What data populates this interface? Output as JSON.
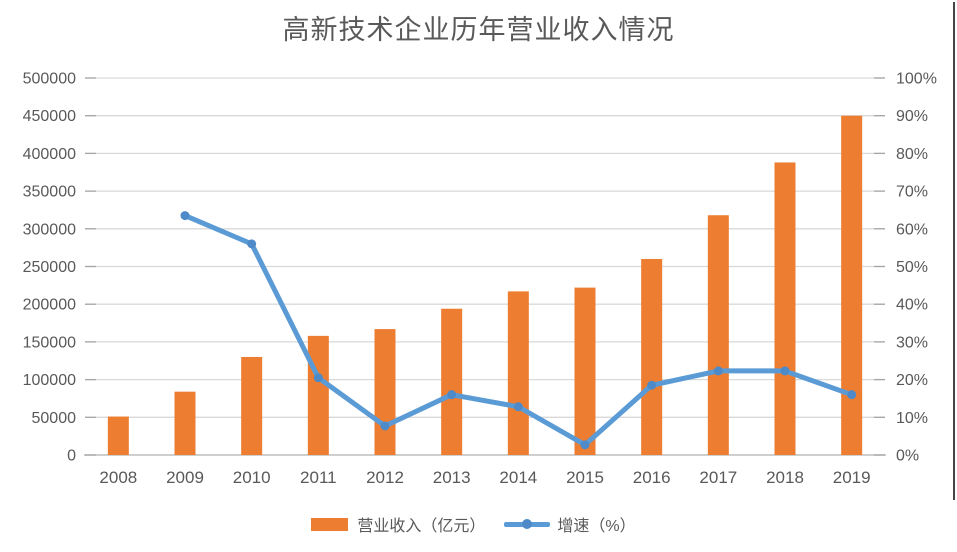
{
  "chart_data": {
    "type": "combo-bar-line",
    "title": "高新技术企业历年营业收入情况",
    "categories": [
      "2008",
      "2009",
      "2010",
      "2011",
      "2012",
      "2013",
      "2014",
      "2015",
      "2016",
      "2017",
      "2018",
      "2019"
    ],
    "series": [
      {
        "name": "营业收入（亿元）",
        "type": "bar",
        "axis": "left",
        "values": [
          51000,
          84000,
          130000,
          158000,
          167000,
          194000,
          217000,
          222000,
          260000,
          318000,
          388000,
          450000
        ]
      },
      {
        "name": "增速（%）",
        "type": "line",
        "axis": "right",
        "values": [
          null,
          63.5,
          56,
          20.5,
          7.7,
          16,
          12.8,
          2.7,
          18.5,
          22.3,
          22.3,
          16
        ]
      }
    ],
    "left_axis": {
      "min": 0,
      "max": 500000,
      "step": 50000,
      "tick_labels": [
        "0",
        "50000",
        "100000",
        "150000",
        "200000",
        "250000",
        "300000",
        "350000",
        "400000",
        "450000",
        "500000"
      ]
    },
    "right_axis": {
      "min": 0,
      "max": 100,
      "step": 10,
      "tick_labels": [
        "0%",
        "10%",
        "20%",
        "30%",
        "40%",
        "50%",
        "60%",
        "70%",
        "80%",
        "90%",
        "100%"
      ]
    },
    "grid": true,
    "legend_position": "bottom"
  },
  "legend": {
    "revenue_label": "营业收入（亿元）",
    "growth_label": "增速（%）"
  },
  "colors": {
    "bar": "#ED7D31",
    "line": "#5B9BD5",
    "line_marker": "#4E8AC8",
    "grid": "#D9D9D9",
    "tick": "#A6A6A6",
    "baseline": "#BFBFBF",
    "text": "#595959",
    "window_border": "#454545"
  }
}
